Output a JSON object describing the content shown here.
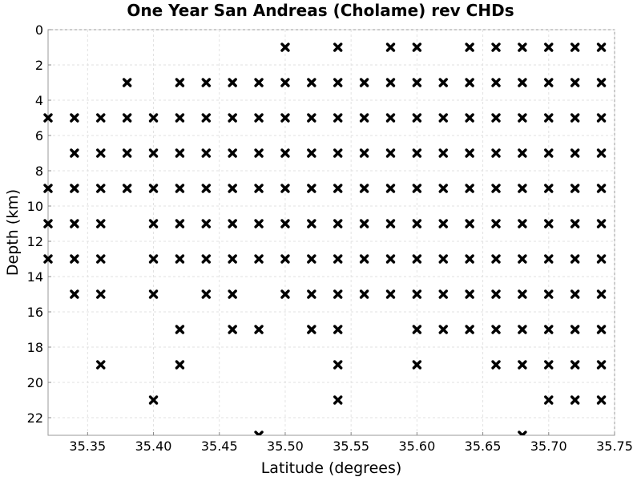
{
  "chart_data": {
    "type": "scatter",
    "title": "One Year San Andreas (Cholame) rev CHDs",
    "xlabel": "Latitude (degrees)",
    "ylabel": "Depth (km)",
    "xlim": [
      35.32,
      35.75
    ],
    "ylim": [
      0,
      23
    ],
    "y_inverted": true,
    "grid": true,
    "marker": "x",
    "marker_color": "#000000",
    "x_ticks": [
      {
        "value": 35.35,
        "label": "35.35"
      },
      {
        "value": 35.4,
        "label": "35.40"
      },
      {
        "value": 35.45,
        "label": "35.45"
      },
      {
        "value": 35.5,
        "label": "35.50"
      },
      {
        "value": 35.55,
        "label": "35.55"
      },
      {
        "value": 35.6,
        "label": "35.60"
      },
      {
        "value": 35.65,
        "label": "35.65"
      },
      {
        "value": 35.7,
        "label": "35.70"
      },
      {
        "value": 35.75,
        "label": "35.75"
      }
    ],
    "y_ticks": [
      {
        "value": 0,
        "label": "0"
      },
      {
        "value": 2,
        "label": "2"
      },
      {
        "value": 4,
        "label": "4"
      },
      {
        "value": 6,
        "label": "6"
      },
      {
        "value": 8,
        "label": "8"
      },
      {
        "value": 10,
        "label": "10"
      },
      {
        "value": 12,
        "label": "12"
      },
      {
        "value": 14,
        "label": "14"
      },
      {
        "value": 16,
        "label": "16"
      },
      {
        "value": 18,
        "label": "18"
      },
      {
        "value": 20,
        "label": "20"
      },
      {
        "value": 22,
        "label": "22"
      }
    ],
    "points_by_depth": [
      {
        "depth": 1,
        "lats": [
          35.5,
          35.54,
          35.58,
          35.6,
          35.64,
          35.66,
          35.68,
          35.7,
          35.72,
          35.74
        ]
      },
      {
        "depth": 3,
        "lats": [
          35.38,
          35.42,
          35.44,
          35.46,
          35.48,
          35.5,
          35.52,
          35.54,
          35.56,
          35.58,
          35.6,
          35.62,
          35.64,
          35.66,
          35.68,
          35.7,
          35.72,
          35.74
        ]
      },
      {
        "depth": 5,
        "lats": [
          35.32,
          35.34,
          35.36,
          35.38,
          35.4,
          35.42,
          35.44,
          35.46,
          35.48,
          35.5,
          35.52,
          35.54,
          35.56,
          35.58,
          35.6,
          35.62,
          35.64,
          35.66,
          35.68,
          35.7,
          35.72,
          35.74
        ]
      },
      {
        "depth": 7,
        "lats": [
          35.34,
          35.36,
          35.38,
          35.4,
          35.42,
          35.44,
          35.46,
          35.48,
          35.5,
          35.52,
          35.54,
          35.56,
          35.58,
          35.6,
          35.62,
          35.64,
          35.66,
          35.68,
          35.7,
          35.72,
          35.74
        ]
      },
      {
        "depth": 9,
        "lats": [
          35.32,
          35.34,
          35.36,
          35.38,
          35.4,
          35.42,
          35.44,
          35.46,
          35.48,
          35.5,
          35.52,
          35.54,
          35.56,
          35.58,
          35.6,
          35.62,
          35.64,
          35.66,
          35.68,
          35.7,
          35.72,
          35.74
        ]
      },
      {
        "depth": 11,
        "lats": [
          35.32,
          35.34,
          35.36,
          35.4,
          35.42,
          35.44,
          35.46,
          35.48,
          35.5,
          35.52,
          35.54,
          35.56,
          35.58,
          35.6,
          35.62,
          35.64,
          35.66,
          35.68,
          35.7,
          35.72,
          35.74
        ]
      },
      {
        "depth": 13,
        "lats": [
          35.32,
          35.34,
          35.36,
          35.4,
          35.42,
          35.44,
          35.46,
          35.48,
          35.5,
          35.52,
          35.54,
          35.56,
          35.58,
          35.6,
          35.62,
          35.64,
          35.66,
          35.68,
          35.7,
          35.72,
          35.74
        ]
      },
      {
        "depth": 15,
        "lats": [
          35.34,
          35.36,
          35.4,
          35.44,
          35.46,
          35.5,
          35.52,
          35.54,
          35.56,
          35.58,
          35.6,
          35.62,
          35.64,
          35.66,
          35.68,
          35.7,
          35.72,
          35.74
        ]
      },
      {
        "depth": 17,
        "lats": [
          35.42,
          35.46,
          35.48,
          35.52,
          35.54,
          35.6,
          35.62,
          35.64,
          35.66,
          35.68,
          35.7,
          35.72,
          35.74
        ]
      },
      {
        "depth": 19,
        "lats": [
          35.36,
          35.42,
          35.54,
          35.6,
          35.66,
          35.68,
          35.7,
          35.72,
          35.74
        ]
      },
      {
        "depth": 21,
        "lats": [
          35.4,
          35.54,
          35.7,
          35.72,
          35.74
        ]
      },
      {
        "depth": 23,
        "lats": [
          35.48,
          35.68
        ]
      }
    ]
  }
}
